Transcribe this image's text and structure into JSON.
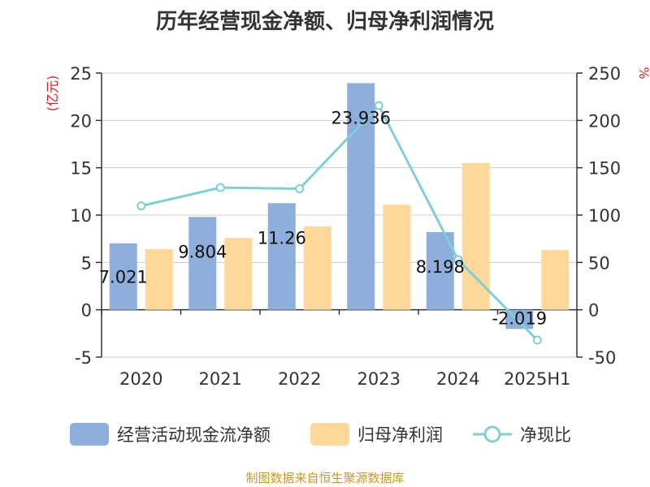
{
  "chart_data": {
    "type": "bar",
    "title": "历年经营现金净额、归母净利润情况",
    "categories": [
      "2020",
      "2021",
      "2022",
      "2023",
      "2024",
      "2025H1"
    ],
    "y_left": {
      "unit_label": "(亿元)",
      "ticks": [
        "25",
        "20",
        "15",
        "10",
        "5",
        "0",
        "-5"
      ],
      "ylim": [
        -5,
        25
      ]
    },
    "y_right": {
      "unit_label": "%",
      "ticks": [
        "250",
        "200",
        "150",
        "100",
        "50",
        "0",
        "-50"
      ],
      "ylim": [
        -50,
        250
      ]
    },
    "series": [
      {
        "name": "经营活动现金流净额",
        "kind": "bar",
        "axis": "left",
        "color": "#8eaedb",
        "values": [
          7.021,
          9.804,
          11.26,
          23.936,
          8.198,
          -2.019
        ],
        "labels": [
          "7.021",
          "9.804",
          "11.26",
          "23.936",
          "8.198",
          "-2.019"
        ]
      },
      {
        "name": "归母净利润",
        "kind": "bar",
        "axis": "left",
        "color": "#fdd89a",
        "values": [
          6.4,
          7.6,
          8.8,
          11.1,
          15.5,
          6.3
        ]
      },
      {
        "name": "净现比",
        "kind": "line",
        "axis": "right",
        "color": "#7fcfd6",
        "values": [
          109.7,
          129.0,
          127.9,
          215.6,
          52.9,
          -32.0
        ]
      }
    ],
    "grid": true,
    "legend_position": "bottom"
  },
  "legend": {
    "items": [
      "经营活动现金流净额",
      "归母净利润",
      "净现比"
    ]
  },
  "source": "制图数据来自恒生聚源数据库"
}
